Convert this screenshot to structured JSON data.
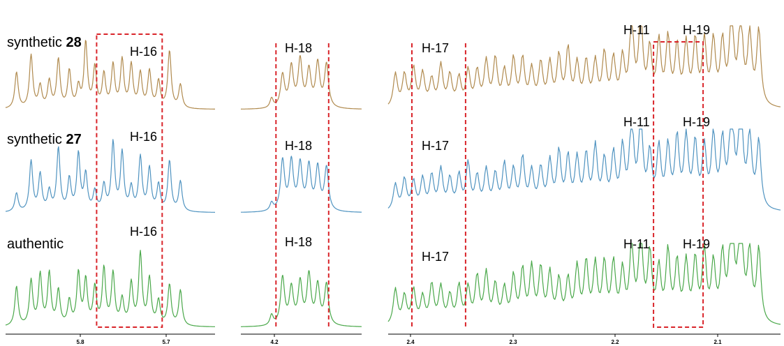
{
  "chart_data": {
    "type": "line",
    "x_axis": {
      "reversed": true,
      "unit": "",
      "tick_labels": [
        "5.8",
        "5.7",
        "4.2",
        "2.4",
        "2.3",
        "2.2",
        "2.1"
      ],
      "ranges": [
        [
          5.87,
          5.64
        ],
        [
          4.23,
          4.12
        ],
        [
          2.425,
          2.045
        ]
      ]
    },
    "series": [
      {
        "label_prefix": "synthetic ",
        "label_bold": "28",
        "color": "#b08a4e",
        "peak_labels": {
          "panel_a": "H-16",
          "panel_b": "H-18",
          "panel_c_1": "H-17",
          "panel_c_2": "H-11",
          "panel_c_3": "H-19"
        }
      },
      {
        "label_prefix": "synthetic ",
        "label_bold": "27",
        "color": "#4f93c0",
        "peak_labels": {
          "panel_a": "H-16",
          "panel_b": "H-18",
          "panel_c_1": "H-17",
          "panel_c_2": "H-11",
          "panel_c_3": "H-19"
        }
      },
      {
        "label_prefix": "authentic",
        "label_bold": "",
        "color": "#4aa84a",
        "peak_labels": {
          "panel_a": "H-16",
          "panel_b": "H-18",
          "panel_c_1": "H-17",
          "panel_c_2": "H-11",
          "panel_c_3": "H-19"
        }
      }
    ],
    "highlight_regions": [
      {
        "panel": "panel_a",
        "x_from": 5.77,
        "x_to": 5.698
      },
      {
        "panel": "panel_b",
        "x_from": 4.198,
        "x_to": 4.15
      },
      {
        "panel": "panel_c",
        "x_from": 2.402,
        "x_to": 2.35
      },
      {
        "panel": "panel_c",
        "x_from": 2.168,
        "x_to": 2.12
      }
    ],
    "accent_color": "#d9242a"
  }
}
